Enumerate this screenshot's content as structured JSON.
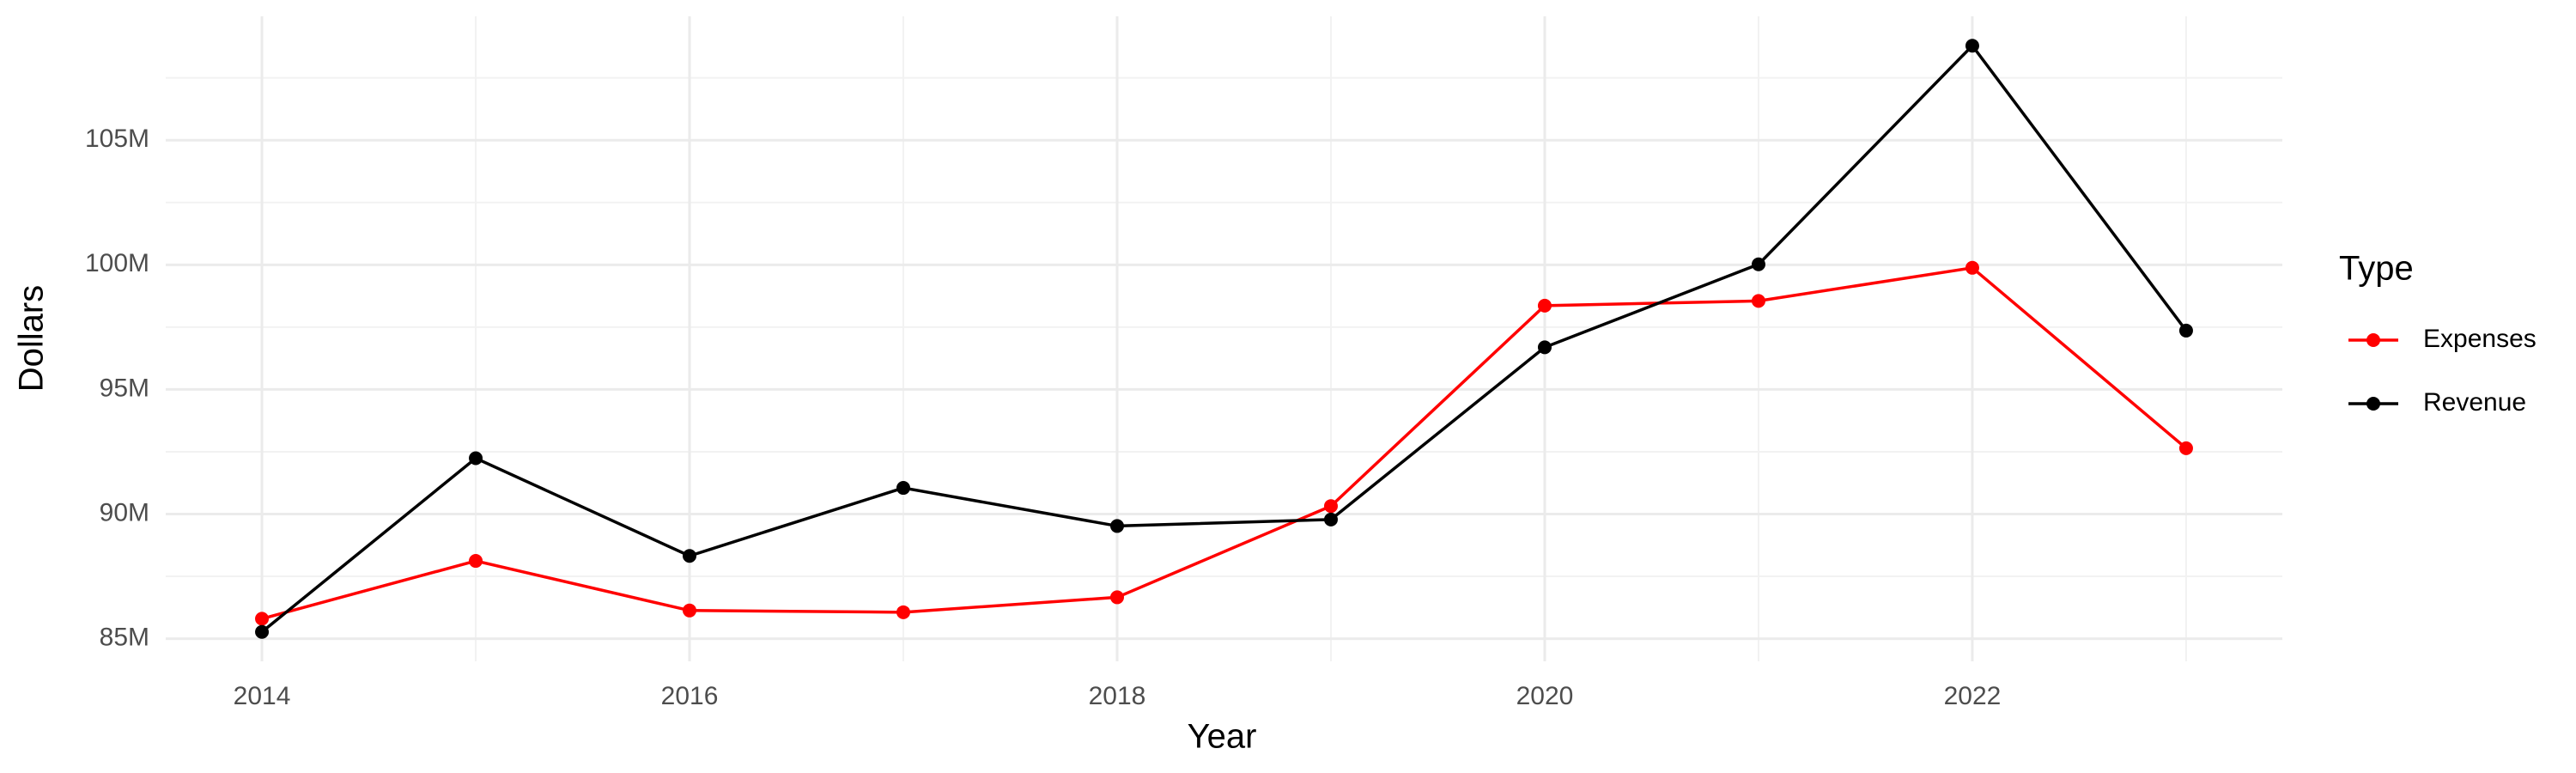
{
  "chart_data": {
    "type": "line",
    "x_label": "Year",
    "y_label": "Dollars",
    "legend_title": "Type",
    "x": [
      2014,
      2015,
      2016,
      2017,
      2018,
      2019,
      2020,
      2021,
      2022,
      2023
    ],
    "series": [
      {
        "name": "Expenses",
        "color": "#ff0000",
        "values": [
          85800000,
          88120000,
          86130000,
          86060000,
          86660000,
          90320000,
          98360000,
          98550000,
          99880000,
          92640000
        ]
      },
      {
        "name": "Revenue",
        "color": "#000000",
        "values": [
          85270000,
          92240000,
          88320000,
          91050000,
          89520000,
          89780000,
          96690000,
          100020000,
          108790000,
          97360000
        ]
      }
    ],
    "xlim": [
      2013.55,
      2023.45
    ],
    "xticks": [
      2014,
      2016,
      2018,
      2020,
      2022
    ],
    "ylim": [
      84090000,
      109970000
    ],
    "yticks": [
      {
        "value": 85000000,
        "label": "85M"
      },
      {
        "value": 90000000,
        "label": "90M"
      },
      {
        "value": 95000000,
        "label": "95M"
      },
      {
        "value": 100000000,
        "label": "100M"
      },
      {
        "value": 105000000,
        "label": "105M"
      }
    ],
    "grid": true,
    "legend_position": "right"
  }
}
